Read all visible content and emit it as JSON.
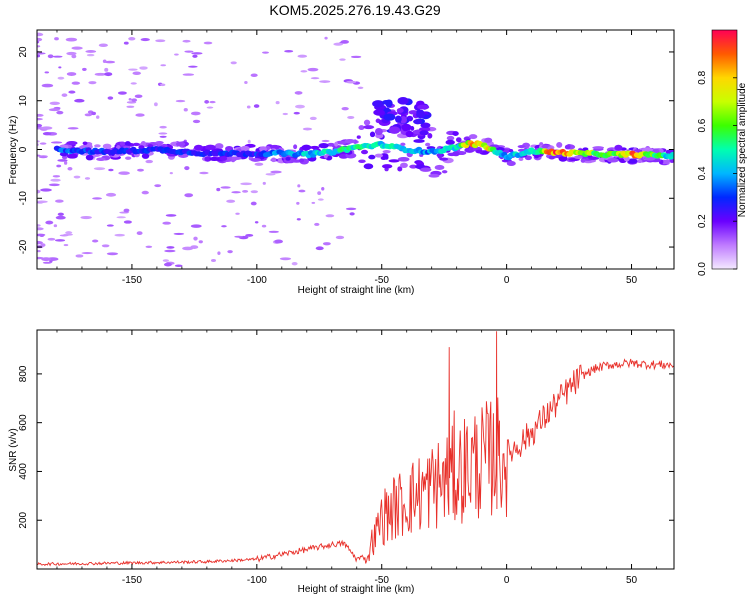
{
  "title": "KOM5.2025.276.19.43.G29",
  "chart_data": [
    {
      "type": "heatmap",
      "name": "spectrogram",
      "xlabel": "Height of straight line (km)",
      "ylabel": "Frequency (Hz)",
      "xlim": [
        -188,
        67
      ],
      "ylim": [
        -24.5,
        24.5
      ],
      "xticks": [
        -150,
        -100,
        -50,
        0,
        50
      ],
      "yticks": [
        -20,
        -10,
        0,
        10,
        20
      ],
      "colorbar": {
        "label": "Normalized spectral amplitude",
        "range": [
          0.0,
          1.0
        ],
        "ticks": [
          0.0,
          0.2,
          0.4,
          0.6,
          0.8
        ]
      },
      "ridge": [
        {
          "x": -180,
          "f": 0.0,
          "a": 0.35
        },
        {
          "x": -160,
          "f": -0.5,
          "a": 0.3
        },
        {
          "x": -140,
          "f": 0.0,
          "a": 0.3
        },
        {
          "x": -120,
          "f": -0.8,
          "a": 0.3
        },
        {
          "x": -100,
          "f": -0.8,
          "a": 0.3
        },
        {
          "x": -90,
          "f": -0.8,
          "a": 0.4
        },
        {
          "x": -80,
          "f": -1.0,
          "a": 0.45
        },
        {
          "x": -70,
          "f": -0.5,
          "a": 0.5
        },
        {
          "x": -60,
          "f": 0.5,
          "a": 0.55
        },
        {
          "x": -50,
          "f": 1.0,
          "a": 0.5
        },
        {
          "x": -40,
          "f": 0.0,
          "a": 0.45
        },
        {
          "x": -30,
          "f": -0.5,
          "a": 0.4
        },
        {
          "x": -20,
          "f": 0.5,
          "a": 0.5
        },
        {
          "x": -15,
          "f": 1.2,
          "a": 0.8
        },
        {
          "x": -10,
          "f": 1.0,
          "a": 0.9
        },
        {
          "x": 0,
          "f": -1.5,
          "a": 0.4
        },
        {
          "x": 10,
          "f": -0.3,
          "a": 0.5
        },
        {
          "x": 20,
          "f": -0.6,
          "a": 1.0
        },
        {
          "x": 30,
          "f": -0.8,
          "a": 0.75
        },
        {
          "x": 40,
          "f": -1.0,
          "a": 0.55
        },
        {
          "x": 50,
          "f": -1.0,
          "a": 0.95
        },
        {
          "x": 67,
          "f": -1.3,
          "a": 0.4
        }
      ]
    },
    {
      "type": "line",
      "name": "snr",
      "xlabel": "Height of straight line (km)",
      "ylabel": "SNR (v/v)",
      "xlim": [
        -188,
        67
      ],
      "ylim": [
        0,
        980
      ],
      "xticks": [
        -150,
        -100,
        -50,
        0,
        50
      ],
      "yticks": [
        200,
        400,
        600,
        800
      ],
      "color": "#e8302a",
      "trend_x": [
        -188,
        -150,
        -120,
        -100,
        -90,
        -80,
        -70,
        -65,
        -60,
        -57,
        -55,
        -52,
        -50,
        -45,
        -40,
        -35,
        -30,
        -25,
        -20,
        -15,
        -10,
        -5,
        0,
        5,
        10,
        15,
        20,
        25,
        30,
        35,
        40,
        45,
        50,
        55,
        60,
        67
      ],
      "trend_y": [
        20,
        25,
        30,
        40,
        60,
        80,
        100,
        105,
        40,
        50,
        90,
        150,
        210,
        250,
        280,
        310,
        340,
        360,
        390,
        430,
        440,
        460,
        470,
        510,
        560,
        620,
        680,
        740,
        790,
        820,
        835,
        840,
        845,
        840,
        838,
        836
      ],
      "spikes": [
        {
          "x": -23,
          "y": 910
        },
        {
          "x": -4,
          "y": 975
        },
        {
          "x": -21,
          "y": 650
        },
        {
          "x": -3,
          "y": 580
        }
      ]
    }
  ]
}
